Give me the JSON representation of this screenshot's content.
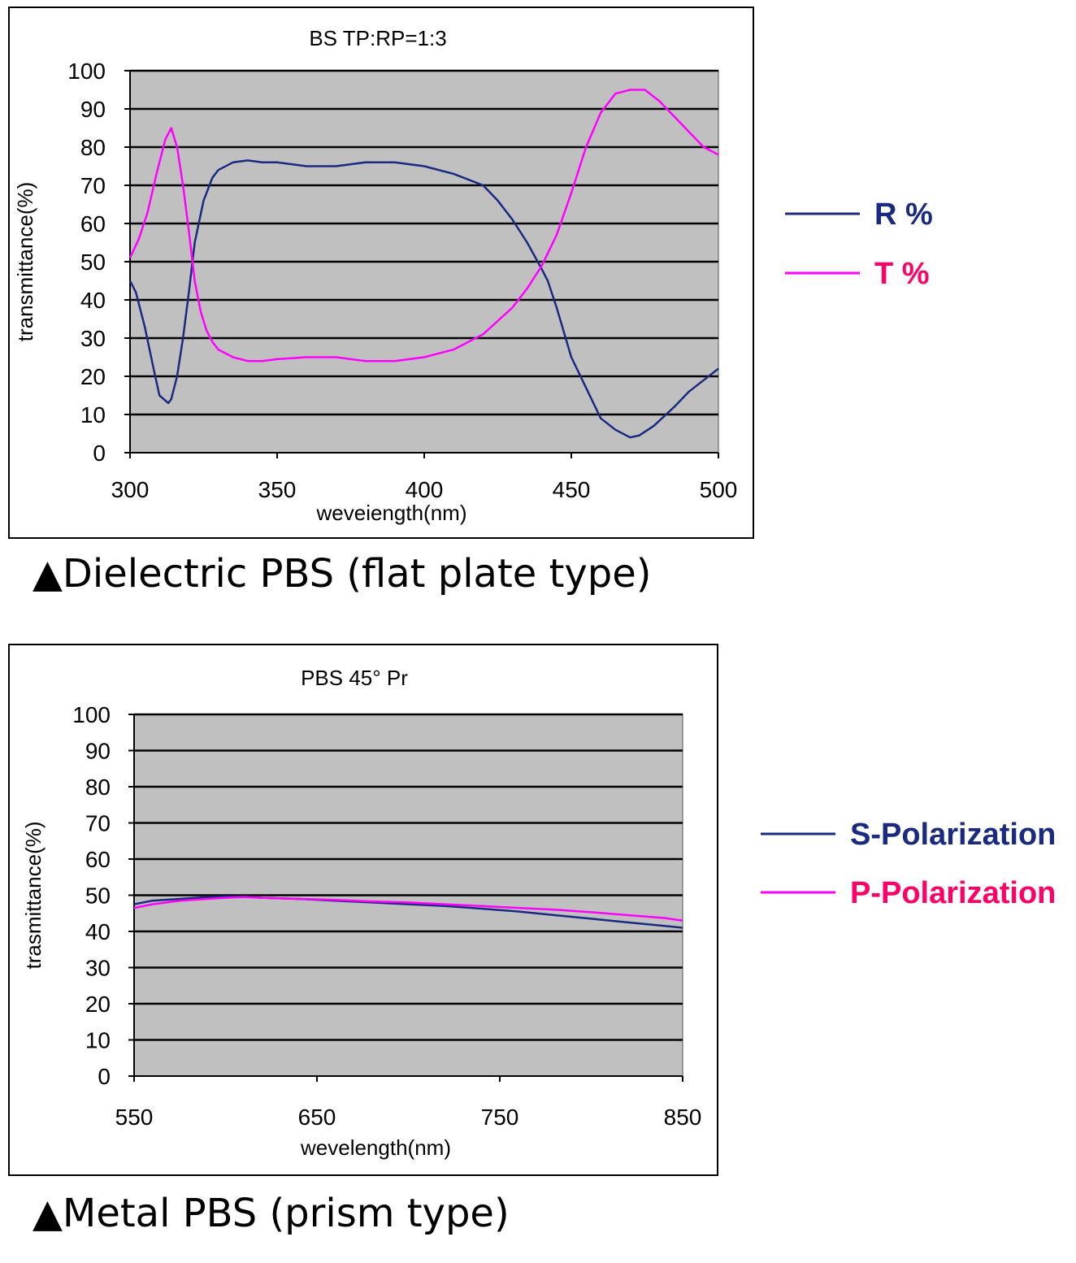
{
  "chart_data": [
    {
      "type": "line",
      "title": "BS TP:RP=1:3",
      "xlabel": "weveiength(nm)",
      "ylabel": "transmittance(%)",
      "xlim": [
        300,
        500
      ],
      "ylim": [
        0,
        100
      ],
      "xticks": [
        300,
        350,
        400,
        450,
        500
      ],
      "yticks": [
        0,
        10,
        20,
        30,
        40,
        50,
        60,
        70,
        80,
        90,
        100
      ],
      "grid": true,
      "legend": "right",
      "series": [
        {
          "name": "R %",
          "color": "#1a2a80",
          "x": [
            300,
            302,
            305,
            308,
            310,
            313,
            314,
            316,
            318,
            320,
            322,
            325,
            328,
            330,
            335,
            340,
            345,
            350,
            360,
            370,
            380,
            390,
            400,
            410,
            420,
            425,
            430,
            435,
            440,
            442,
            445,
            450,
            455,
            460,
            465,
            470,
            473,
            478,
            485,
            490,
            495,
            500
          ],
          "y": [
            45,
            42,
            33,
            22,
            15,
            13,
            14,
            20,
            30,
            42,
            55,
            66,
            72,
            74,
            76,
            76.5,
            76,
            76,
            75,
            75,
            76,
            76,
            75,
            73,
            70,
            66,
            61,
            55,
            48,
            45,
            38,
            25,
            17,
            9,
            6,
            4,
            4.5,
            7,
            12,
            16,
            19,
            22
          ]
        },
        {
          "name": "T %",
          "color": "#ff00ff",
          "x": [
            300,
            303,
            306,
            309,
            312,
            314,
            316,
            318,
            320,
            322,
            324,
            326,
            328,
            330,
            335,
            340,
            345,
            350,
            360,
            370,
            380,
            390,
            400,
            410,
            420,
            430,
            435,
            440,
            445,
            450,
            455,
            460,
            465,
            470,
            475,
            480,
            485,
            490,
            495,
            500
          ],
          "y": [
            51,
            56,
            63,
            73,
            82,
            85,
            80,
            70,
            58,
            45,
            37,
            32,
            29,
            27,
            25,
            24,
            24,
            24.5,
            25,
            25,
            24,
            24,
            25,
            27,
            31,
            38,
            43,
            49,
            57,
            68,
            80,
            89,
            94,
            95,
            95,
            92,
            88,
            84,
            80,
            78
          ]
        }
      ]
    },
    {
      "type": "line",
      "title": "PBS 45°  Pr",
      "xlabel": "wevelength(nm)",
      "ylabel": "trasmittance(%)",
      "xlim": [
        550,
        850
      ],
      "ylim": [
        0,
        100
      ],
      "xticks": [
        550,
        650,
        750,
        850
      ],
      "yticks": [
        0,
        10,
        20,
        30,
        40,
        50,
        60,
        70,
        80,
        90,
        100
      ],
      "grid": true,
      "legend": "right",
      "series": [
        {
          "name": "S-Polarization",
          "color": "#1a2a80",
          "x": [
            550,
            560,
            575,
            590,
            600,
            610,
            620,
            640,
            660,
            680,
            700,
            720,
            740,
            760,
            780,
            800,
            820,
            840,
            850
          ],
          "y": [
            47.5,
            48.5,
            49,
            49.5,
            49.7,
            49.6,
            49.3,
            49,
            48.5,
            48,
            47.5,
            47,
            46.3,
            45.5,
            44.5,
            43.5,
            42.5,
            41.5,
            41
          ]
        },
        {
          "name": "P-Polarization",
          "color": "#ff00ff",
          "x": [
            550,
            560,
            575,
            590,
            600,
            610,
            620,
            640,
            660,
            680,
            700,
            720,
            740,
            760,
            780,
            800,
            820,
            840,
            850
          ],
          "y": [
            46.5,
            47.5,
            48.5,
            49,
            49.3,
            49.5,
            49.3,
            49,
            48.7,
            48.3,
            48,
            47.5,
            47,
            46.5,
            46,
            45.3,
            44.5,
            43.7,
            43
          ]
        }
      ]
    }
  ],
  "captions": [
    "▲Dielectric PBS (flat plate type)",
    "▲Metal PBS (prism type)"
  ]
}
